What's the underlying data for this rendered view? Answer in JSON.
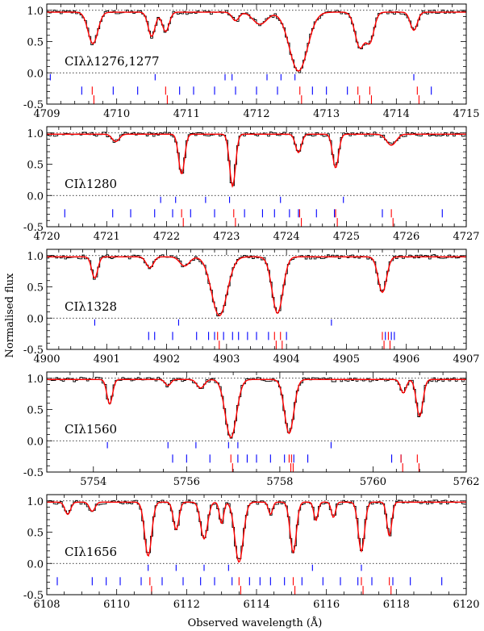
{
  "chart_data": {
    "type": "line",
    "ylabel": "Normalised flux",
    "xlabel": "Observed wavelength (Å)",
    "colors": {
      "data": "#000000",
      "model": "#ff0000",
      "blue_ticks": "#0000ff",
      "red_ticks": "#ff0000"
    },
    "panels": [
      {
        "label": "CIλλ1276,1277",
        "xlim": [
          4709,
          4715
        ],
        "ylim": [
          -0.5,
          1.1
        ],
        "xticks": [
          4709,
          4710,
          4711,
          4712,
          4713,
          4714,
          4715
        ],
        "yticks": [
          "1.0",
          "0.5",
          "0.0",
          "-0.5"
        ],
        "continuum": 0.97,
        "absorptions": [
          {
            "x": 4709.66,
            "depth": 0.52,
            "width": 0.07
          },
          {
            "x": 4710.5,
            "depth": 0.4,
            "width": 0.05
          },
          {
            "x": 4710.7,
            "depth": 0.32,
            "width": 0.05
          },
          {
            "x": 4711.7,
            "depth": 0.14,
            "width": 0.05
          },
          {
            "x": 4712.05,
            "depth": 0.2,
            "width": 0.1
          },
          {
            "x": 4712.6,
            "depth": 0.97,
            "width": 0.13
          },
          {
            "x": 4713.48,
            "depth": 0.58,
            "width": 0.07
          },
          {
            "x": 4713.62,
            "depth": 0.48,
            "width": 0.06
          },
          {
            "x": 4714.25,
            "depth": 0.3,
            "width": 0.05
          }
        ],
        "blue_ticks_row1": [
          4709.05,
          4710.55,
          4711.55,
          4711.65,
          4712.15,
          4712.35,
          4712.55,
          4714.25
        ],
        "blue_ticks_row2": [
          4709.5,
          4709.95,
          4710.3,
          4710.9,
          4711.1,
          4711.4,
          4711.7,
          4712.0,
          4712.3,
          4712.8,
          4713.0,
          4713.3,
          4714.5
        ],
        "red_ticks": [
          4709.65,
          4710.7,
          4712.62,
          4713.45,
          4713.62,
          4714.3
        ]
      },
      {
        "label": "CIλ1280",
        "xlim": [
          4720,
          4727
        ],
        "ylim": [
          -0.5,
          1.1
        ],
        "xticks": [
          4720,
          4721,
          4722,
          4723,
          4724,
          4725,
          4726,
          4727
        ],
        "yticks": [
          "1.0",
          "0.5",
          "0.0",
          "-0.5"
        ],
        "continuum": 0.98,
        "absorptions": [
          {
            "x": 4721.15,
            "depth": 0.12,
            "width": 0.06
          },
          {
            "x": 4722.25,
            "depth": 0.65,
            "width": 0.05
          },
          {
            "x": 4723.1,
            "depth": 0.85,
            "width": 0.05
          },
          {
            "x": 4724.2,
            "depth": 0.3,
            "width": 0.05
          },
          {
            "x": 4724.82,
            "depth": 0.55,
            "width": 0.05
          },
          {
            "x": 4725.75,
            "depth": 0.18,
            "width": 0.08
          }
        ],
        "blue_ticks_row1": [
          4721.9,
          4722.15,
          4722.65,
          4723.05,
          4723.9,
          4724.95
        ],
        "blue_ticks_row2": [
          4720.3,
          4721.1,
          4721.4,
          4721.8,
          4722.1,
          4722.4,
          4722.8,
          4723.3,
          4723.6,
          4723.8,
          4724.05,
          4724.2,
          4724.5,
          4724.8,
          4725.6,
          4726.6
        ],
        "red_ticks": [
          4722.25,
          4723.12,
          4724.22,
          4724.82,
          4725.75
        ]
      },
      {
        "label": "CIλ1328",
        "xlim": [
          4900,
          4907
        ],
        "ylim": [
          -0.5,
          1.1
        ],
        "xticks": [
          4900,
          4901,
          4902,
          4903,
          4904,
          4905,
          4906,
          4907
        ],
        "yticks": [
          "1.0",
          "0.5",
          "0.0",
          "-0.5"
        ],
        "continuum": 0.98,
        "absorptions": [
          {
            "x": 4900.8,
            "depth": 0.35,
            "width": 0.05
          },
          {
            "x": 4901.72,
            "depth": 0.18,
            "width": 0.06
          },
          {
            "x": 4902.3,
            "depth": 0.15,
            "width": 0.08
          },
          {
            "x": 4902.88,
            "depth": 0.96,
            "width": 0.13
          },
          {
            "x": 4903.85,
            "depth": 0.92,
            "width": 0.09
          },
          {
            "x": 4905.6,
            "depth": 0.58,
            "width": 0.07
          }
        ],
        "blue_ticks_row1": [
          4900.8,
          4902.2,
          4904.75
        ],
        "blue_ticks_row2": [
          4901.7,
          4901.8,
          4902.1,
          4902.5,
          4902.7,
          4902.8,
          4902.95,
          4903.1,
          4903.2,
          4903.35,
          4903.5,
          4903.7,
          4904.0,
          4905.65,
          4905.75,
          4905.8
        ],
        "red_ticks": [
          4902.85,
          4903.8,
          4903.9,
          4905.6,
          4905.7
        ]
      },
      {
        "label": "CIλ1560",
        "xlim": [
          5753,
          5762
        ],
        "ylim": [
          -0.5,
          1.1
        ],
        "xticks": [
          5754,
          5756,
          5758,
          5760,
          5762
        ],
        "yticks": [
          "1.0",
          "0.5",
          "0.0",
          "-0.5"
        ],
        "continuum": 0.98,
        "absorptions": [
          {
            "x": 5754.35,
            "depth": 0.4,
            "width": 0.06
          },
          {
            "x": 5755.6,
            "depth": 0.1,
            "width": 0.06
          },
          {
            "x": 5756.3,
            "depth": 0.14,
            "width": 0.08
          },
          {
            "x": 5756.95,
            "depth": 0.95,
            "width": 0.12
          },
          {
            "x": 5758.2,
            "depth": 0.88,
            "width": 0.1
          },
          {
            "x": 5760.65,
            "depth": 0.22,
            "width": 0.06
          },
          {
            "x": 5761.0,
            "depth": 0.6,
            "width": 0.07
          }
        ],
        "blue_ticks_row1": [
          5754.3,
          5755.6,
          5756.2,
          5756.9,
          5757.1,
          5759.1
        ],
        "blue_ticks_row2": [
          5755.7,
          5756.0,
          5756.5,
          5757.1,
          5757.3,
          5757.5,
          5757.8,
          5758.1,
          5758.3,
          5758.6,
          5760.4,
          5760.6
        ],
        "red_ticks": [
          5756.95,
          5758.2,
          5758.25,
          5760.6,
          5760.95
        ]
      },
      {
        "label": "CIλ1656",
        "xlim": [
          6108,
          6120
        ],
        "ylim": [
          -0.5,
          1.1
        ],
        "xticks": [
          6108,
          6110,
          6112,
          6114,
          6116,
          6118,
          6120
        ],
        "yticks": [
          "1.0",
          "0.5",
          "0.0",
          "-0.5"
        ],
        "continuum": 0.98,
        "absorptions": [
          {
            "x": 6108.6,
            "depth": 0.2,
            "width": 0.08
          },
          {
            "x": 6109.3,
            "depth": 0.15,
            "width": 0.08
          },
          {
            "x": 6110.9,
            "depth": 0.88,
            "width": 0.1
          },
          {
            "x": 6111.7,
            "depth": 0.45,
            "width": 0.08
          },
          {
            "x": 6112.5,
            "depth": 0.6,
            "width": 0.1
          },
          {
            "x": 6113.0,
            "depth": 0.35,
            "width": 0.06
          },
          {
            "x": 6113.5,
            "depth": 0.98,
            "width": 0.12
          },
          {
            "x": 6114.4,
            "depth": 0.2,
            "width": 0.06
          },
          {
            "x": 6115.05,
            "depth": 0.82,
            "width": 0.09
          },
          {
            "x": 6115.7,
            "depth": 0.3,
            "width": 0.06
          },
          {
            "x": 6116.2,
            "depth": 0.25,
            "width": 0.06
          },
          {
            "x": 6117.0,
            "depth": 0.8,
            "width": 0.09
          },
          {
            "x": 6117.8,
            "depth": 0.55,
            "width": 0.07
          }
        ],
        "blue_ticks_row1": [
          6110.9,
          6111.7,
          6112.5,
          6113.2,
          6115.6,
          6117.0
        ],
        "blue_ticks_row2": [
          6108.3,
          6109.3,
          6109.7,
          6110.1,
          6110.7,
          6111.3,
          6111.9,
          6112.4,
          6112.8,
          6113.3,
          6113.8,
          6114.1,
          6114.4,
          6114.8,
          6115.3,
          6115.9,
          6116.4,
          6116.9,
          6117.3,
          6117.9,
          6118.4,
          6119.3
        ],
        "red_ticks": [
          6110.95,
          6113.5,
          6115.05,
          6117.0,
          6117.8
        ]
      }
    ]
  }
}
